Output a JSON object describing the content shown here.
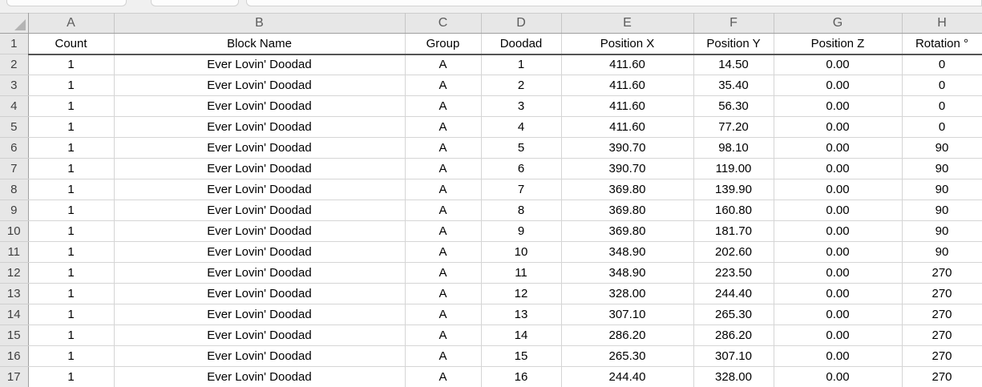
{
  "spreadsheet": {
    "column_letters": [
      "A",
      "B",
      "C",
      "D",
      "E",
      "F",
      "G",
      "H"
    ],
    "header_row": {
      "row_number": "1",
      "cells": [
        "Count",
        "Block Name",
        "Group",
        "Doodad",
        "Position X",
        "Position Y",
        "Position Z",
        "Rotation °"
      ]
    },
    "data_rows": [
      {
        "row_number": "2",
        "cells": [
          "1",
          "Ever Lovin' Doodad",
          "A",
          "1",
          "411.60",
          "14.50",
          "0.00",
          "0"
        ]
      },
      {
        "row_number": "3",
        "cells": [
          "1",
          "Ever Lovin' Doodad",
          "A",
          "2",
          "411.60",
          "35.40",
          "0.00",
          "0"
        ]
      },
      {
        "row_number": "4",
        "cells": [
          "1",
          "Ever Lovin' Doodad",
          "A",
          "3",
          "411.60",
          "56.30",
          "0.00",
          "0"
        ]
      },
      {
        "row_number": "5",
        "cells": [
          "1",
          "Ever Lovin' Doodad",
          "A",
          "4",
          "411.60",
          "77.20",
          "0.00",
          "0"
        ]
      },
      {
        "row_number": "6",
        "cells": [
          "1",
          "Ever Lovin' Doodad",
          "A",
          "5",
          "390.70",
          "98.10",
          "0.00",
          "90"
        ]
      },
      {
        "row_number": "7",
        "cells": [
          "1",
          "Ever Lovin' Doodad",
          "A",
          "6",
          "390.70",
          "119.00",
          "0.00",
          "90"
        ]
      },
      {
        "row_number": "8",
        "cells": [
          "1",
          "Ever Lovin' Doodad",
          "A",
          "7",
          "369.80",
          "139.90",
          "0.00",
          "90"
        ]
      },
      {
        "row_number": "9",
        "cells": [
          "1",
          "Ever Lovin' Doodad",
          "A",
          "8",
          "369.80",
          "160.80",
          "0.00",
          "90"
        ]
      },
      {
        "row_number": "10",
        "cells": [
          "1",
          "Ever Lovin' Doodad",
          "A",
          "9",
          "369.80",
          "181.70",
          "0.00",
          "90"
        ]
      },
      {
        "row_number": "11",
        "cells": [
          "1",
          "Ever Lovin' Doodad",
          "A",
          "10",
          "348.90",
          "202.60",
          "0.00",
          "90"
        ]
      },
      {
        "row_number": "12",
        "cells": [
          "1",
          "Ever Lovin' Doodad",
          "A",
          "11",
          "348.90",
          "223.50",
          "0.00",
          "270"
        ]
      },
      {
        "row_number": "13",
        "cells": [
          "1",
          "Ever Lovin' Doodad",
          "A",
          "12",
          "328.00",
          "244.40",
          "0.00",
          "270"
        ]
      },
      {
        "row_number": "14",
        "cells": [
          "1",
          "Ever Lovin' Doodad",
          "A",
          "13",
          "307.10",
          "265.30",
          "0.00",
          "270"
        ]
      },
      {
        "row_number": "15",
        "cells": [
          "1",
          "Ever Lovin' Doodad",
          "A",
          "14",
          "286.20",
          "286.20",
          "0.00",
          "270"
        ]
      },
      {
        "row_number": "16",
        "cells": [
          "1",
          "Ever Lovin' Doodad",
          "A",
          "15",
          "265.30",
          "307.10",
          "0.00",
          "270"
        ]
      },
      {
        "row_number": "17",
        "cells": [
          "1",
          "Ever Lovin' Doodad",
          "A",
          "16",
          "244.40",
          "328.00",
          "0.00",
          "270"
        ]
      }
    ]
  }
}
